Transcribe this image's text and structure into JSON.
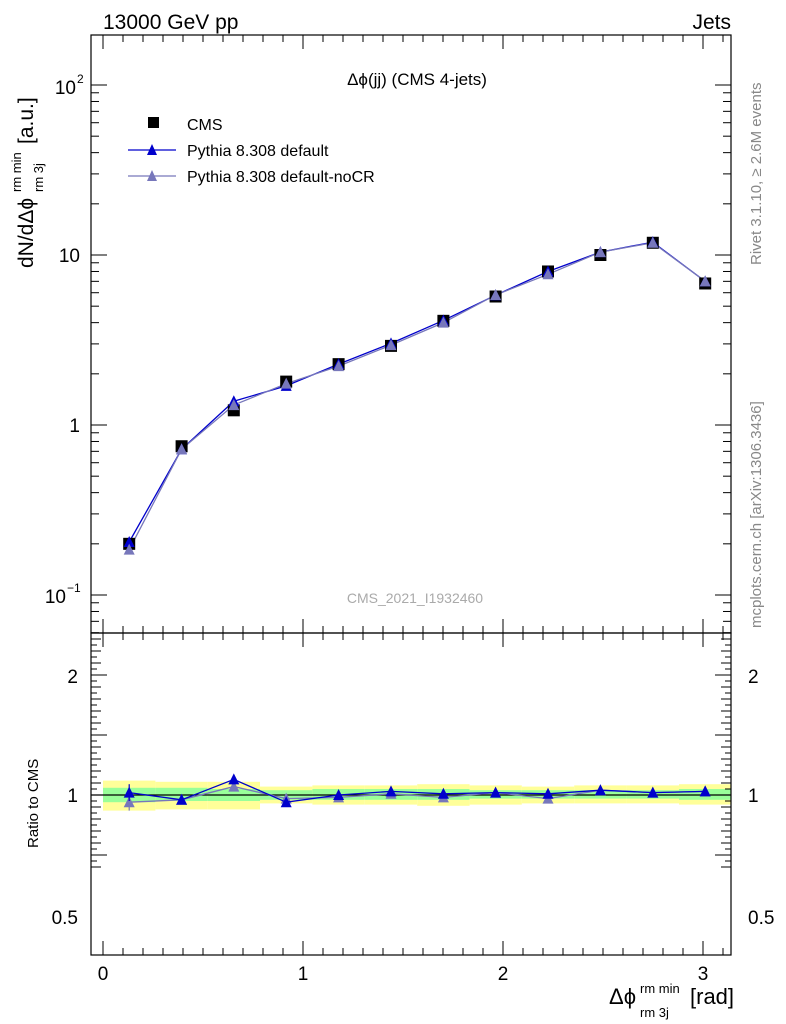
{
  "header": {
    "left": "13000 GeV pp",
    "right": "Jets"
  },
  "side_texts": {
    "rivet": "Rivet 3.1.10, ≥ 2.6M events",
    "mcplots": "mcplots.cern.ch [arXiv:1306.3436]"
  },
  "analysis_id": "CMS_2021_I1932460",
  "colors": {
    "data": "#000000",
    "mc1": "#0000cc",
    "mc2": "#7777bb",
    "band_inner": "#99ff99",
    "band_outer": "#ffff99"
  },
  "chart_data": [
    {
      "type": "scatter",
      "title": "Δϕ(jj) (CMS 4-jets)",
      "ylabel": "dN/dΔϕ rm 3j rm min [a.u.]",
      "yscale": "log",
      "ylim": [
        0.06,
        200
      ],
      "xlim": [
        -0.08,
        3.2
      ],
      "y_tick_labels": [
        "10^-1",
        "1",
        "10",
        "10^2"
      ],
      "legend": {
        "position": "top-left",
        "entries": [
          "CMS",
          "Pythia 8.308 default",
          "Pythia 8.308 default-noCR"
        ]
      },
      "x": [
        0.131,
        0.393,
        0.654,
        0.916,
        1.178,
        1.44,
        1.702,
        1.963,
        2.225,
        2.487,
        2.749,
        3.011
      ],
      "series": [
        {
          "name": "CMS",
          "marker": "square",
          "values": [
            0.2,
            0.75,
            1.22,
            1.8,
            2.28,
            2.92,
            4.1,
            5.7,
            8.0,
            10.0,
            11.8,
            6.8
          ]
        },
        {
          "name": "Pythia 8.308 default",
          "marker": "triangle",
          "values": [
            0.205,
            0.72,
            1.38,
            1.7,
            2.28,
            3.02,
            4.12,
            5.8,
            8.0,
            10.4,
            11.9,
            7.0
          ]
        },
        {
          "name": "Pythia 8.308 default-noCR",
          "marker": "triangle",
          "values": [
            0.185,
            0.72,
            1.31,
            1.75,
            2.22,
            2.95,
            4.0,
            5.82,
            7.7,
            10.4,
            11.8,
            7.0
          ]
        }
      ]
    },
    {
      "type": "scatter",
      "ylabel": "Ratio to CMS",
      "xlabel": "Δϕ rm 3j rm min [rad]",
      "ylim": [
        0.4,
        2.5
      ],
      "xlim": [
        -0.08,
        3.2
      ],
      "x_tick_labels": [
        "0",
        "1",
        "2",
        "3"
      ],
      "y_tick_labels": [
        "0.5",
        "1",
        "2"
      ],
      "x": [
        0.131,
        0.393,
        0.654,
        0.916,
        1.178,
        1.44,
        1.702,
        1.963,
        2.225,
        2.487,
        2.749,
        3.011
      ],
      "bin_edges": [
        0.0,
        0.262,
        0.524,
        0.785,
        1.047,
        1.309,
        1.571,
        1.833,
        2.094,
        2.356,
        2.618,
        2.88,
        3.142
      ],
      "band_inner": [
        [
          0.94,
          1.06
        ],
        [
          0.95,
          1.06
        ],
        [
          0.95,
          1.05
        ],
        [
          0.96,
          1.04
        ],
        [
          0.96,
          1.05
        ],
        [
          0.96,
          1.05
        ],
        [
          0.96,
          1.05
        ],
        [
          0.97,
          1.04
        ],
        [
          0.97,
          1.04
        ],
        [
          0.97,
          1.04
        ],
        [
          0.97,
          1.04
        ],
        [
          0.96,
          1.05
        ]
      ],
      "band_outer": [
        [
          0.87,
          1.12
        ],
        [
          0.88,
          1.11
        ],
        [
          0.88,
          1.11
        ],
        [
          0.93,
          1.07
        ],
        [
          0.92,
          1.08
        ],
        [
          0.92,
          1.08
        ],
        [
          0.91,
          1.09
        ],
        [
          0.92,
          1.08
        ],
        [
          0.93,
          1.07
        ],
        [
          0.93,
          1.08
        ],
        [
          0.93,
          1.08
        ],
        [
          0.92,
          1.09
        ]
      ],
      "series": [
        {
          "name": "Pythia 8.308 default",
          "values": [
            1.02,
            0.96,
            1.13,
            0.94,
            1.0,
            1.03,
            1.01,
            1.02,
            1.01,
            1.04,
            1.02,
            1.03
          ],
          "errors": [
            0.07,
            0.03,
            0.03,
            0.02,
            0.01,
            0.01,
            0.01,
            0.01,
            0.01,
            0.01,
            0.01,
            0.01
          ]
        },
        {
          "name": "Pythia 8.308 default-noCR",
          "values": [
            0.94,
            0.96,
            1.07,
            0.97,
            0.98,
            1.01,
            0.98,
            1.02,
            0.97,
            1.04,
            1.02,
            1.03
          ],
          "errors": [
            0.07,
            0.03,
            0.03,
            0.02,
            0.01,
            0.01,
            0.01,
            0.01,
            0.01,
            0.01,
            0.01,
            0.01
          ]
        }
      ]
    }
  ]
}
